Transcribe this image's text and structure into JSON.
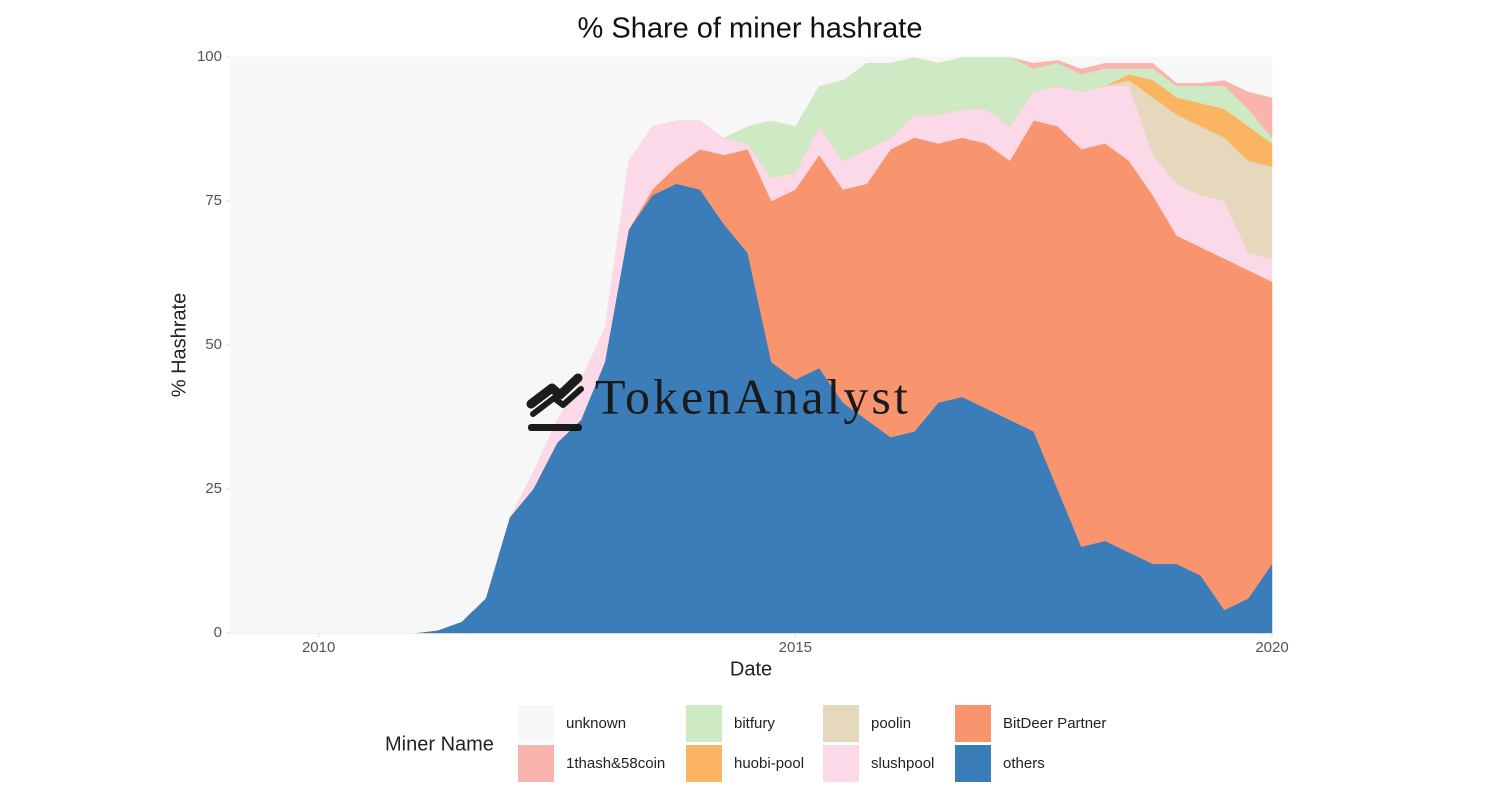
{
  "chart_data": {
    "type": "area",
    "stacked": true,
    "title": "% Share of miner hashrate",
    "x_label": "Date",
    "y_label": "% Hashrate",
    "legend_title": "Miner Name",
    "watermark": "TokenAnalyst",
    "x": [
      2009.07,
      2010,
      2011,
      2011.25,
      2011.5,
      2011.75,
      2012,
      2012.25,
      2012.5,
      2012.75,
      2013,
      2013.25,
      2013.5,
      2013.75,
      2014,
      2014.25,
      2014.5,
      2014.75,
      2015,
      2015.25,
      2015.5,
      2015.75,
      2016,
      2016.25,
      2016.5,
      2016.75,
      2017,
      2017.25,
      2017.5,
      2017.75,
      2018,
      2018.25,
      2018.5,
      2018.75,
      2019,
      2019.25,
      2019.5,
      2019.75,
      2020
    ],
    "xlim": [
      2009.07,
      2020
    ],
    "xticks": [
      2010,
      2015,
      2020
    ],
    "ylim": [
      0,
      100
    ],
    "yticks": [
      0,
      25,
      50,
      75,
      100
    ],
    "series": [
      {
        "name": "unknown",
        "color": "#f7f7f7",
        "values": [
          100,
          100,
          100,
          99.5,
          98,
          94,
          80,
          72,
          63,
          56,
          47,
          18,
          12,
          11,
          11,
          14,
          12,
          11,
          12,
          5,
          4,
          1,
          1,
          0,
          1,
          0,
          0,
          0,
          1,
          0.5,
          2,
          1,
          1,
          1,
          4.5,
          4.5,
          4,
          6,
          7
        ]
      },
      {
        "name": "1thash&58coin",
        "color": "#f9b4ae",
        "values": [
          0,
          0,
          0,
          0,
          0,
          0,
          0,
          0,
          0,
          0,
          0,
          0,
          0,
          0,
          0,
          0,
          0,
          0,
          0,
          0,
          0,
          0,
          0,
          0,
          0,
          0,
          0,
          0,
          1,
          0.5,
          1,
          1,
          1,
          1,
          0.5,
          0.5,
          1,
          3,
          7
        ]
      },
      {
        "name": "bitfury",
        "color": "#cdeac5",
        "values": [
          0,
          0,
          0,
          0,
          0,
          0,
          0,
          0,
          0,
          0,
          0,
          0,
          0,
          0,
          0,
          0,
          3,
          10,
          8,
          7,
          14,
          15,
          13,
          10,
          9,
          9,
          9,
          12,
          4,
          4,
          3,
          3,
          1,
          2,
          2,
          3,
          4,
          3,
          1
        ]
      },
      {
        "name": "huobi-pool",
        "color": "#fbb462",
        "values": [
          0,
          0,
          0,
          0,
          0,
          0,
          0,
          0,
          0,
          0,
          0,
          0,
          0,
          0,
          0,
          0,
          0,
          0,
          0,
          0,
          0,
          0,
          0,
          0,
          0,
          0,
          0,
          0,
          0,
          0,
          0,
          0,
          1,
          3,
          3,
          4,
          5,
          6,
          4
        ]
      },
      {
        "name": "poolin",
        "color": "#e5d8bd",
        "values": [
          0,
          0,
          0,
          0,
          0,
          0,
          0,
          0,
          0,
          0,
          0,
          0,
          0,
          0,
          0,
          0,
          0,
          0,
          0,
          0,
          0,
          0,
          0,
          0,
          0,
          0,
          0,
          0,
          0,
          0,
          0,
          0,
          1,
          10,
          12,
          12,
          11,
          16,
          16
        ]
      },
      {
        "name": "slushpool",
        "color": "#fcd9e8",
        "values": [
          0,
          0,
          0,
          0,
          0,
          0,
          0,
          3,
          4,
          7,
          6,
          12,
          11,
          8,
          5,
          3,
          1,
          4,
          3,
          5,
          5,
          6,
          2,
          4,
          5,
          5,
          6,
          6,
          5,
          7,
          10,
          10,
          13,
          7,
          9,
          9,
          10,
          3,
          4
        ]
      },
      {
        "name": "BitDeer Partner",
        "color": "#f8956f",
        "values": [
          0,
          0,
          0,
          0,
          0,
          0,
          0,
          0,
          0,
          0,
          0,
          0,
          1,
          3,
          7,
          12,
          18,
          28,
          33,
          37,
          37,
          41,
          50,
          51,
          45,
          45,
          46,
          45,
          54,
          63,
          69,
          69,
          68,
          64,
          57,
          57,
          61,
          57,
          49
        ]
      },
      {
        "name": "others",
        "color": "#3a7db8",
        "values": [
          0,
          0,
          0,
          0.5,
          2,
          6,
          20,
          25,
          33,
          37,
          47,
          70,
          76,
          78,
          77,
          71,
          66,
          47,
          44,
          46,
          40,
          37,
          34,
          35,
          40,
          41,
          39,
          37,
          35,
          25,
          15,
          16,
          14,
          12,
          12,
          10,
          4,
          6,
          12
        ]
      }
    ]
  }
}
